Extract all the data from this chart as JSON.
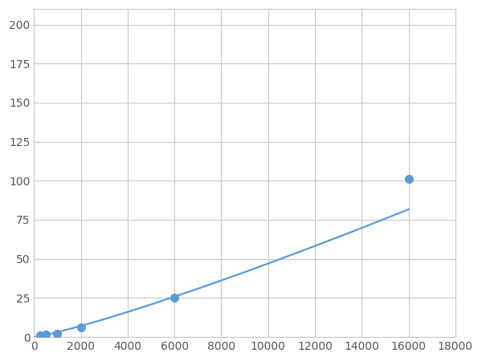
{
  "x": [
    0,
    250,
    500,
    1000,
    2000,
    6000,
    16000
  ],
  "y": [
    0,
    0.8,
    1.5,
    2.2,
    6.0,
    25.0,
    101.0
  ],
  "marker_x": [
    250,
    500,
    1000,
    2000,
    6000,
    16000
  ],
  "marker_y": [
    0.8,
    1.5,
    2.2,
    6.0,
    25.0,
    101.0
  ],
  "line_color": "#5b9bd5",
  "marker_color": "#5b9bd5",
  "xlim": [
    0,
    18000
  ],
  "ylim": [
    0,
    210
  ],
  "xticks": [
    0,
    2000,
    4000,
    6000,
    8000,
    10000,
    12000,
    14000,
    16000,
    18000
  ],
  "yticks": [
    0,
    25,
    50,
    75,
    100,
    125,
    150,
    175,
    200
  ],
  "grid_color": "#c8c8c8",
  "background_color": "#ffffff",
  "marker_size": 7,
  "line_width": 1.6,
  "tick_labelsize": 10,
  "tick_color": "#555555"
}
